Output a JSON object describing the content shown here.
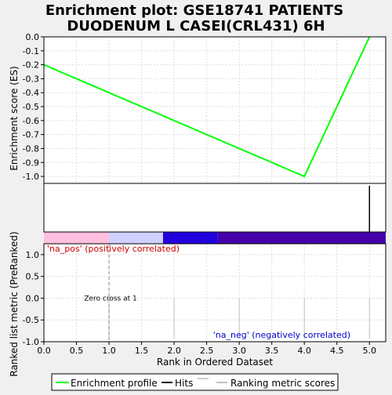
{
  "title_line1": "Enrichment plot: GSE18741 PATIENTS",
  "title_line2": "DUODENUM L CASEI(CRL431) 6H",
  "es_panel": {
    "ylabel": "Enrichment score (ES)",
    "yticks": [
      "0.0",
      "-0.1",
      "-0.2",
      "-0.3",
      "-0.4",
      "-0.5",
      "-0.6",
      "-0.7",
      "-0.8",
      "-0.9",
      "-1.0"
    ]
  },
  "rank_panel": {
    "ylabel": "Ranked list metric (PreRanked)",
    "yticks": [
      "1.0",
      "0.5",
      "0.0",
      "-0.5",
      "-1.0"
    ],
    "pos_label": "'na_pos' (positively correlated)",
    "neg_label": "'na_neg' (negatively correlated)",
    "zero_cross_label": "Zero cross at 1"
  },
  "x_axis": {
    "xlabel": "Rank in Ordered Dataset",
    "xticks": [
      "0.0",
      "0.5",
      "1.0",
      "1.5",
      "2.0",
      "2.5",
      "3.0",
      "3.5",
      "4.0",
      "4.5",
      "5.0"
    ]
  },
  "legend": {
    "items": [
      {
        "label": "Enrichment profile",
        "color": "#00ff00"
      },
      {
        "label": "Hits",
        "color": "#000000"
      },
      {
        "label": "Ranking metric scores",
        "color": "#c0c0c0"
      }
    ]
  },
  "colors": {
    "profile": "#00ff00",
    "pos_label": "#cc0000",
    "neg_label": "#0000cc",
    "bar_pink": "#ffc0e0",
    "bar_lavender": "#d0d0ff",
    "bar_blue": "#2200dd",
    "bar_purple": "#4400aa"
  },
  "chart_data": {
    "type": "line",
    "x_range": [
      0,
      5.25
    ],
    "es_ylim": [
      -1.05,
      0
    ],
    "rank_ylim": [
      -1.0,
      1.25
    ],
    "enrichment_profile": {
      "x": [
        0,
        4,
        5
      ],
      "y": [
        -0.2,
        -1.0,
        0.0
      ]
    },
    "hits": [
      5
    ],
    "ranking_metric_scores": {
      "x": [
        1,
        2,
        3,
        4,
        5
      ],
      "y": [
        0,
        0,
        0,
        0,
        0
      ]
    },
    "zero_cross": 1,
    "color_bar": [
      {
        "from": 0,
        "to": 1,
        "color": "#ffc0e0"
      },
      {
        "from": 1,
        "to": 1.83,
        "color": "#d0d0ff"
      },
      {
        "from": 1.83,
        "to": 2.67,
        "color": "#2200dd"
      },
      {
        "from": 2.67,
        "to": 5.25,
        "color": "#4400aa"
      }
    ]
  }
}
